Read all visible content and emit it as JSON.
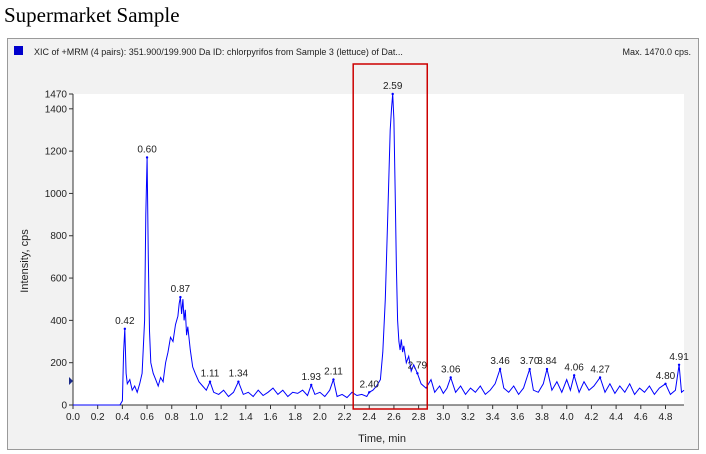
{
  "page_title": "Supermarket Sample",
  "chart_data": {
    "type": "line",
    "header": "XIC of +MRM (4 pairs): 351.900/199.900 Da ID: chlorpyrifos from Sample 3 (lettuce) of Dat...",
    "max_label": "Max. 1470.0 cps.",
    "xlabel": "Time, min",
    "ylabel": "Intensity, cps",
    "xlim": [
      0.0,
      4.95
    ],
    "ylim": [
      0,
      1470
    ],
    "x_ticks": [
      "0.0",
      "0.2",
      "0.4",
      "0.6",
      "0.8",
      "1.0",
      "1.2",
      "1.4",
      "1.6",
      "1.8",
      "2.0",
      "2.2",
      "2.4",
      "2.6",
      "2.8",
      "3.0",
      "3.2",
      "3.4",
      "3.6",
      "3.8",
      "4.0",
      "4.2",
      "4.4",
      "4.6",
      "4.8"
    ],
    "y_ticks": [
      "0",
      "200",
      "400",
      "600",
      "800",
      "1000",
      "1200",
      "1400",
      "1470"
    ],
    "series_color": "#0000ff",
    "highlight_box": {
      "x_start": 2.27,
      "x_end": 2.87,
      "color": "#cc0000"
    },
    "peaks": [
      {
        "x": 0.42,
        "y": 360,
        "label": "0.42"
      },
      {
        "x": 0.6,
        "y": 1170,
        "label": "0.60"
      },
      {
        "x": 0.87,
        "y": 510,
        "label": "0.87"
      },
      {
        "x": 1.11,
        "y": 110,
        "label": "1.11"
      },
      {
        "x": 1.34,
        "y": 110,
        "label": "1.34"
      },
      {
        "x": 1.93,
        "y": 95,
        "label": "1.93"
      },
      {
        "x": 2.11,
        "y": 120,
        "label": "2.11"
      },
      {
        "x": 2.4,
        "y": 60,
        "label": "2.40"
      },
      {
        "x": 2.59,
        "y": 1470,
        "label": "2.59"
      },
      {
        "x": 2.79,
        "y": 150,
        "label": "2.79"
      },
      {
        "x": 3.06,
        "y": 130,
        "label": "3.06"
      },
      {
        "x": 3.46,
        "y": 170,
        "label": "3.46"
      },
      {
        "x": 3.7,
        "y": 170,
        "label": "3.70"
      },
      {
        "x": 3.84,
        "y": 170,
        "label": "3.84"
      },
      {
        "x": 4.06,
        "y": 140,
        "label": "4.06"
      },
      {
        "x": 4.27,
        "y": 130,
        "label": "4.27"
      },
      {
        "x": 4.8,
        "y": 100,
        "label": "4.80"
      },
      {
        "x": 4.91,
        "y": 190,
        "label": "4.91"
      }
    ],
    "trace": [
      [
        0.0,
        0
      ],
      [
        0.38,
        0
      ],
      [
        0.4,
        20
      ],
      [
        0.41,
        250
      ],
      [
        0.42,
        360
      ],
      [
        0.43,
        150
      ],
      [
        0.44,
        100
      ],
      [
        0.46,
        120
      ],
      [
        0.48,
        70
      ],
      [
        0.5,
        90
      ],
      [
        0.52,
        60
      ],
      [
        0.54,
        100
      ],
      [
        0.56,
        150
      ],
      [
        0.58,
        400
      ],
      [
        0.59,
        900
      ],
      [
        0.6,
        1170
      ],
      [
        0.61,
        700
      ],
      [
        0.62,
        350
      ],
      [
        0.63,
        200
      ],
      [
        0.65,
        150
      ],
      [
        0.67,
        120
      ],
      [
        0.69,
        90
      ],
      [
        0.71,
        130
      ],
      [
        0.73,
        110
      ],
      [
        0.75,
        200
      ],
      [
        0.77,
        250
      ],
      [
        0.79,
        320
      ],
      [
        0.81,
        300
      ],
      [
        0.83,
        380
      ],
      [
        0.85,
        420
      ],
      [
        0.86,
        480
      ],
      [
        0.87,
        510
      ],
      [
        0.88,
        430
      ],
      [
        0.89,
        500
      ],
      [
        0.9,
        400
      ],
      [
        0.91,
        450
      ],
      [
        0.92,
        330
      ],
      [
        0.93,
        370
      ],
      [
        0.95,
        260
      ],
      [
        0.97,
        180
      ],
      [
        0.99,
        150
      ],
      [
        1.02,
        110
      ],
      [
        1.05,
        90
      ],
      [
        1.08,
        70
      ],
      [
        1.11,
        110
      ],
      [
        1.14,
        60
      ],
      [
        1.18,
        50
      ],
      [
        1.22,
        70
      ],
      [
        1.26,
        40
      ],
      [
        1.3,
        60
      ],
      [
        1.34,
        110
      ],
      [
        1.38,
        50
      ],
      [
        1.42,
        60
      ],
      [
        1.46,
        40
      ],
      [
        1.5,
        70
      ],
      [
        1.54,
        45
      ],
      [
        1.58,
        60
      ],
      [
        1.62,
        80
      ],
      [
        1.66,
        50
      ],
      [
        1.7,
        70
      ],
      [
        1.74,
        40
      ],
      [
        1.78,
        60
      ],
      [
        1.82,
        55
      ],
      [
        1.86,
        70
      ],
      [
        1.9,
        45
      ],
      [
        1.93,
        95
      ],
      [
        1.96,
        50
      ],
      [
        2.0,
        60
      ],
      [
        2.04,
        40
      ],
      [
        2.08,
        70
      ],
      [
        2.11,
        120
      ],
      [
        2.14,
        40
      ],
      [
        2.18,
        50
      ],
      [
        2.22,
        35
      ],
      [
        2.26,
        60
      ],
      [
        2.3,
        45
      ],
      [
        2.34,
        50
      ],
      [
        2.38,
        40
      ],
      [
        2.4,
        60
      ],
      [
        2.43,
        70
      ],
      [
        2.46,
        90
      ],
      [
        2.49,
        120
      ],
      [
        2.51,
        250
      ],
      [
        2.53,
        500
      ],
      [
        2.55,
        900
      ],
      [
        2.57,
        1300
      ],
      [
        2.58,
        1400
      ],
      [
        2.59,
        1470
      ],
      [
        2.6,
        1350
      ],
      [
        2.61,
        1000
      ],
      [
        2.62,
        650
      ],
      [
        2.63,
        400
      ],
      [
        2.64,
        300
      ],
      [
        2.65,
        260
      ],
      [
        2.66,
        310
      ],
      [
        2.67,
        250
      ],
      [
        2.68,
        280
      ],
      [
        2.7,
        200
      ],
      [
        2.72,
        230
      ],
      [
        2.74,
        160
      ],
      [
        2.76,
        190
      ],
      [
        2.79,
        150
      ],
      [
        2.82,
        100
      ],
      [
        2.86,
        80
      ],
      [
        2.9,
        120
      ],
      [
        2.93,
        60
      ],
      [
        2.97,
        90
      ],
      [
        3.0,
        55
      ],
      [
        3.03,
        80
      ],
      [
        3.06,
        130
      ],
      [
        3.1,
        60
      ],
      [
        3.14,
        90
      ],
      [
        3.18,
        50
      ],
      [
        3.22,
        80
      ],
      [
        3.26,
        60
      ],
      [
        3.3,
        90
      ],
      [
        3.34,
        50
      ],
      [
        3.38,
        70
      ],
      [
        3.42,
        100
      ],
      [
        3.46,
        170
      ],
      [
        3.49,
        80
      ],
      [
        3.53,
        60
      ],
      [
        3.57,
        90
      ],
      [
        3.61,
        50
      ],
      [
        3.65,
        80
      ],
      [
        3.7,
        170
      ],
      [
        3.73,
        70
      ],
      [
        3.77,
        60
      ],
      [
        3.81,
        100
      ],
      [
        3.84,
        170
      ],
      [
        3.88,
        70
      ],
      [
        3.92,
        110
      ],
      [
        3.96,
        60
      ],
      [
        4.0,
        120
      ],
      [
        4.03,
        70
      ],
      [
        4.06,
        140
      ],
      [
        4.1,
        60
      ],
      [
        4.14,
        110
      ],
      [
        4.18,
        70
      ],
      [
        4.22,
        90
      ],
      [
        4.27,
        130
      ],
      [
        4.31,
        60
      ],
      [
        4.35,
        100
      ],
      [
        4.39,
        55
      ],
      [
        4.43,
        90
      ],
      [
        4.47,
        60
      ],
      [
        4.51,
        100
      ],
      [
        4.55,
        50
      ],
      [
        4.59,
        80
      ],
      [
        4.63,
        60
      ],
      [
        4.67,
        90
      ],
      [
        4.71,
        50
      ],
      [
        4.75,
        80
      ],
      [
        4.8,
        100
      ],
      [
        4.84,
        50
      ],
      [
        4.88,
        70
      ],
      [
        4.91,
        190
      ],
      [
        4.93,
        60
      ],
      [
        4.95,
        70
      ]
    ]
  }
}
